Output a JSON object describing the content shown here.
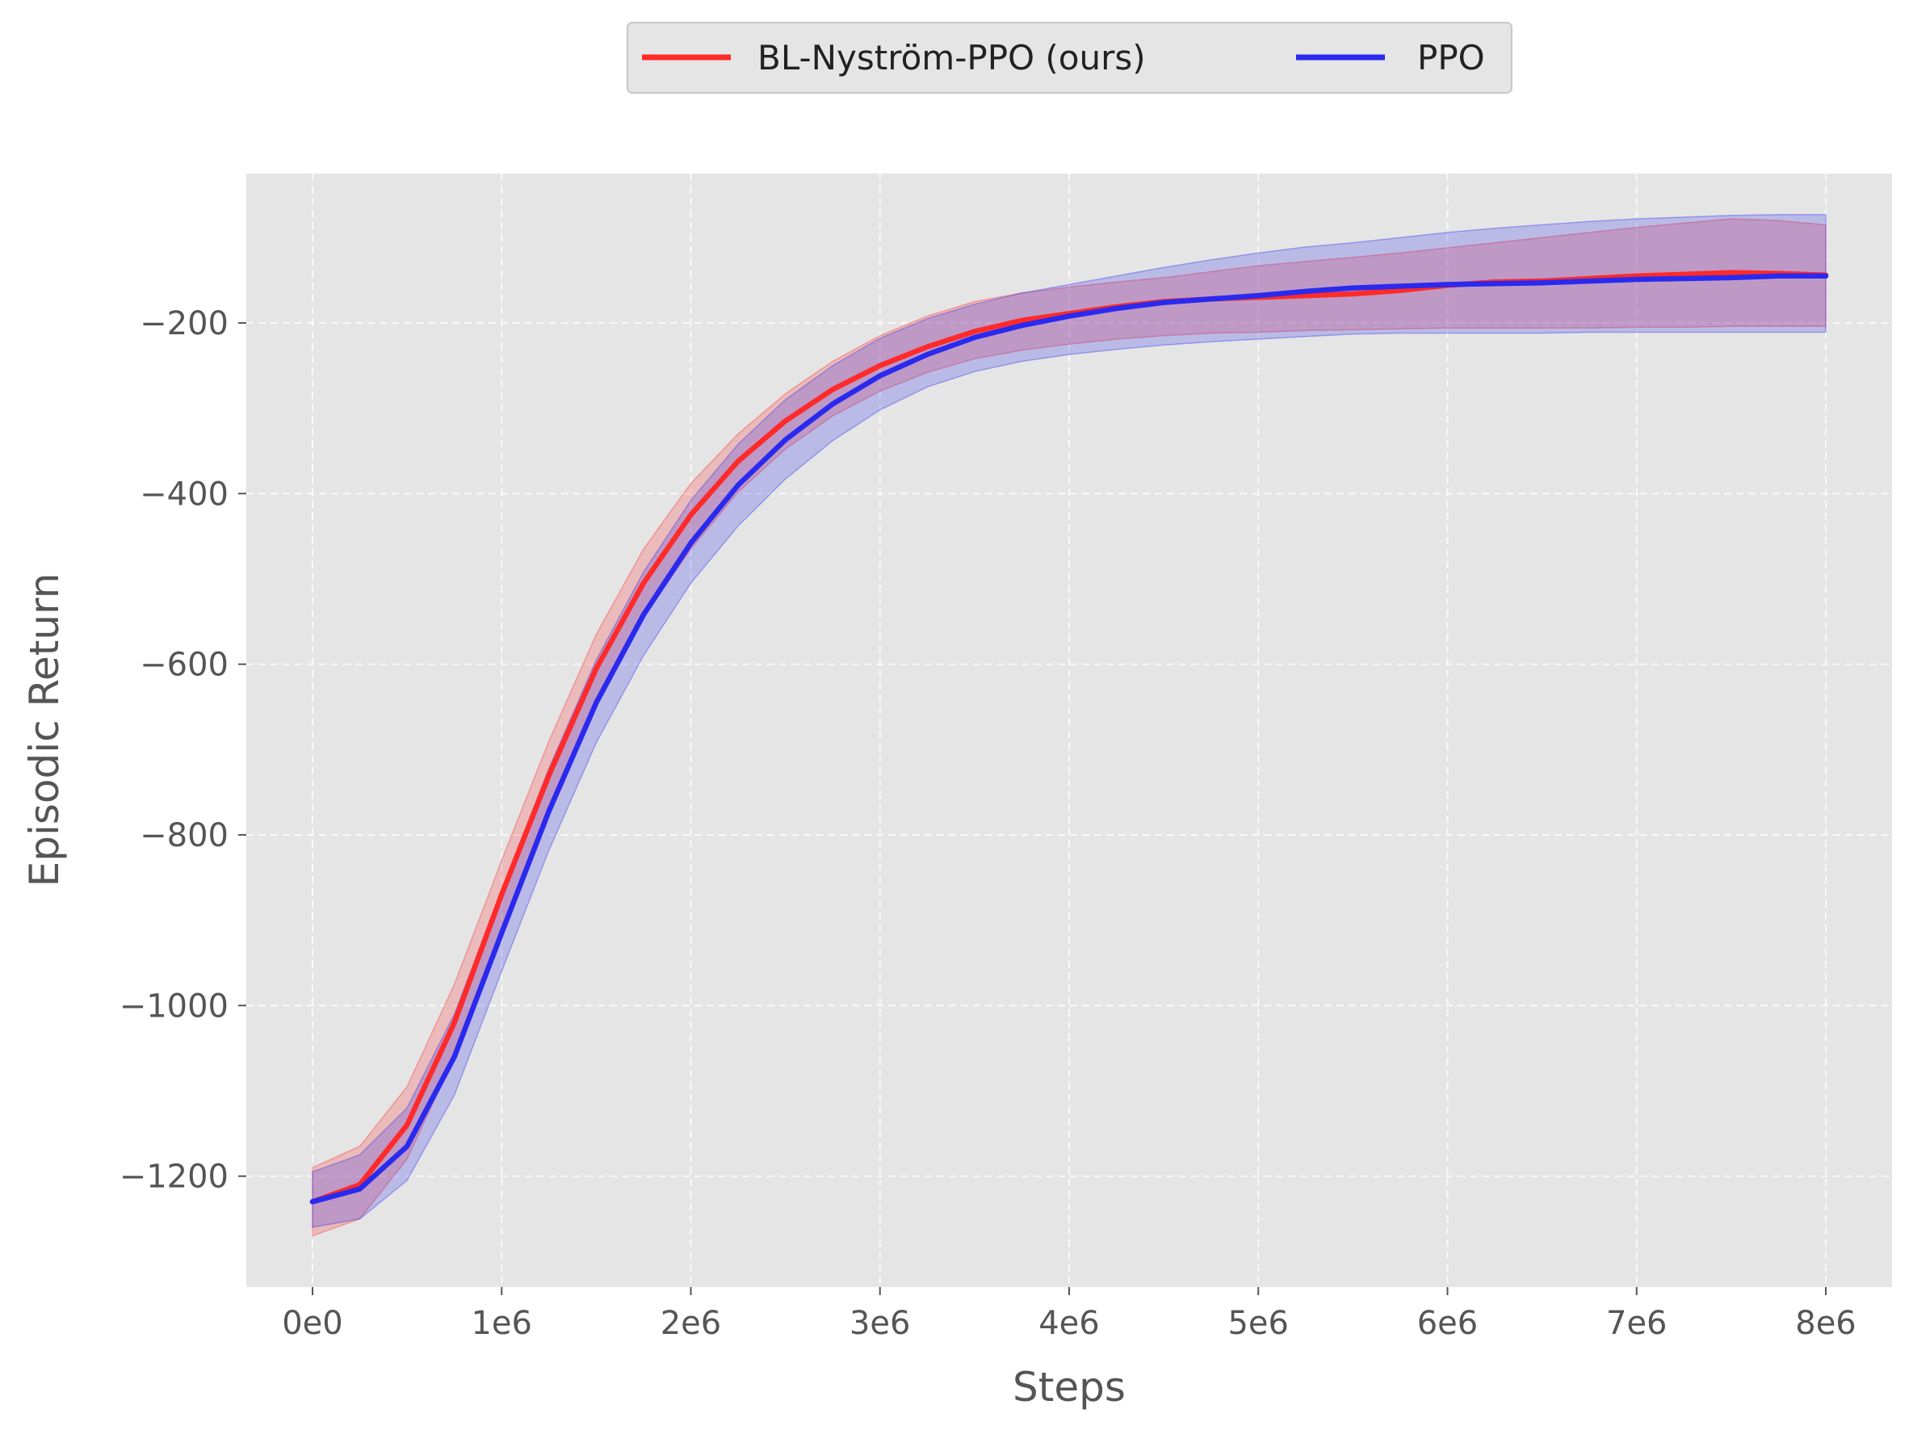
{
  "chart_data": {
    "type": "line",
    "title": "",
    "xlabel": "Steps",
    "ylabel": "Episodic Return",
    "xlim": [
      -350000,
      8350000
    ],
    "ylim": [
      -1330,
      -25
    ],
    "xticks": [
      0,
      1000000,
      2000000,
      3000000,
      4000000,
      5000000,
      6000000,
      7000000,
      8000000
    ],
    "xtick_labels": [
      "0e0",
      "1e6",
      "2e6",
      "3e6",
      "4e6",
      "5e6",
      "6e6",
      "7e6",
      "8e6"
    ],
    "yticks": [
      -1200,
      -1000,
      -800,
      -600,
      -400,
      -200
    ],
    "ytick_labels": [
      "−1200",
      "−1000",
      "−800",
      "−600",
      "−400",
      "−200"
    ],
    "grid": true,
    "legend_position": "top-center",
    "background_color": "#e5e5e5",
    "grid_color": "#ffffff",
    "x": [
      0,
      250000,
      500000,
      750000,
      1000000,
      1250000,
      1500000,
      1750000,
      2000000,
      2250000,
      2500000,
      2750000,
      3000000,
      3250000,
      3500000,
      3750000,
      4000000,
      4250000,
      4500000,
      4750000,
      5000000,
      5250000,
      5500000,
      5750000,
      6000000,
      6250000,
      6500000,
      6750000,
      7000000,
      7250000,
      7500000,
      7750000,
      8000000
    ],
    "series": [
      {
        "name": "BL-Nyström-PPO (ours)",
        "color": "#ff2a2a",
        "values": [
          -1230,
          -1210,
          -1140,
          -1020,
          -870,
          -730,
          -605,
          -505,
          -425,
          -362,
          -315,
          -278,
          -250,
          -228,
          -210,
          -197,
          -189,
          -181,
          -175,
          -172,
          -170,
          -168,
          -166,
          -162,
          -156,
          -152,
          -151,
          -148,
          -145,
          -143,
          -141,
          -142,
          -144
        ],
        "lower": [
          -1270,
          -1250,
          -1180,
          -1060,
          -910,
          -770,
          -645,
          -545,
          -465,
          -398,
          -348,
          -309,
          -280,
          -258,
          -242,
          -232,
          -225,
          -219,
          -215,
          -212,
          -211,
          -209,
          -208,
          -207,
          -206,
          -206,
          -206,
          -206,
          -205,
          -205,
          -204,
          -204,
          -204
        ],
        "upper": [
          -1190,
          -1165,
          -1095,
          -975,
          -830,
          -690,
          -565,
          -465,
          -388,
          -330,
          -283,
          -245,
          -215,
          -192,
          -175,
          -165,
          -158,
          -152,
          -147,
          -140,
          -133,
          -128,
          -123,
          -118,
          -112,
          -106,
          -100,
          -94,
          -88,
          -83,
          -78,
          -80,
          -85
        ]
      },
      {
        "name": "PPO",
        "color": "#2a2aee",
        "values": [
          -1230,
          -1215,
          -1165,
          -1060,
          -915,
          -772,
          -645,
          -542,
          -458,
          -390,
          -337,
          -295,
          -262,
          -237,
          -217,
          -203,
          -192,
          -183,
          -176,
          -172,
          -168,
          -163,
          -159,
          -157,
          -155,
          -154,
          -153,
          -151,
          -149,
          -148,
          -147,
          -145,
          -145
        ],
        "lower": [
          -1260,
          -1250,
          -1205,
          -1105,
          -960,
          -818,
          -692,
          -590,
          -505,
          -438,
          -383,
          -338,
          -302,
          -275,
          -257,
          -245,
          -237,
          -231,
          -226,
          -222,
          -219,
          -216,
          -213,
          -212,
          -212,
          -212,
          -212,
          -211,
          -211,
          -211,
          -211,
          -211,
          -211
        ],
        "upper": [
          -1195,
          -1175,
          -1120,
          -1010,
          -865,
          -722,
          -595,
          -492,
          -408,
          -342,
          -290,
          -250,
          -218,
          -195,
          -178,
          -165,
          -155,
          -145,
          -135,
          -126,
          -118,
          -111,
          -106,
          -100,
          -94,
          -89,
          -85,
          -81,
          -78,
          -76,
          -74,
          -73,
          -73
        ]
      }
    ]
  }
}
